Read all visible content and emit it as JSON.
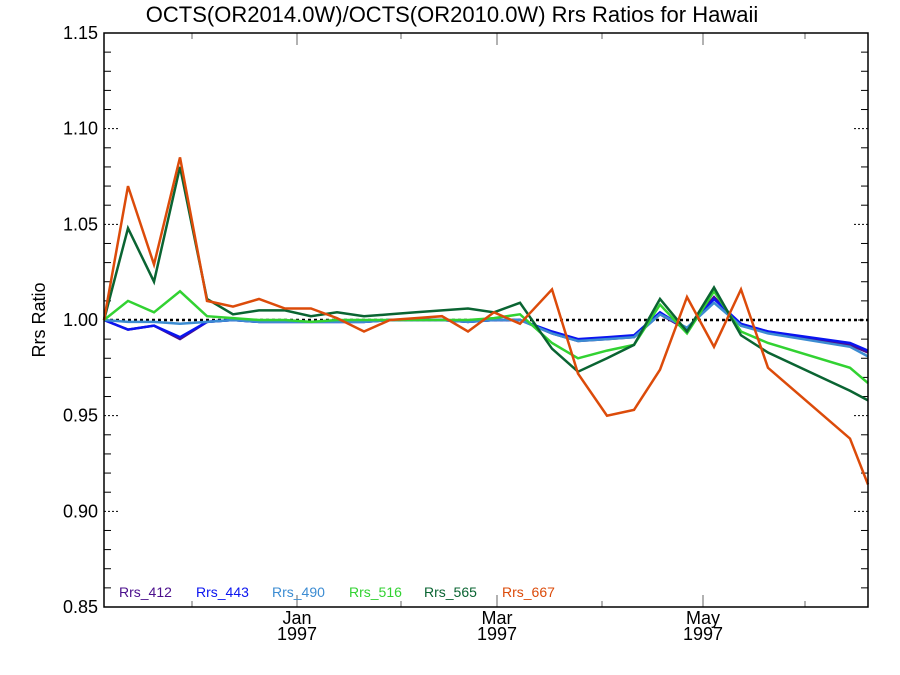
{
  "chart_data": {
    "type": "line",
    "title": "OCTS(OR2014.0W)/OCTS(OR2010.0W)  Rrs Ratios for Hawaii",
    "xlabel": "",
    "ylabel": "Rrs Ratio",
    "x_units": "months since Jan 1997",
    "xlim": [
      -1.93,
      5.71
    ],
    "ylim": [
      0.85,
      1.15
    ],
    "yticks": [
      {
        "value": 0.85,
        "label": "0.85"
      },
      {
        "value": 0.9,
        "label": "0.90"
      },
      {
        "value": 0.95,
        "label": "0.95"
      },
      {
        "value": 1.0,
        "label": "1.00"
      },
      {
        "value": 1.05,
        "label": "1.05"
      },
      {
        "value": 1.1,
        "label": "1.10"
      },
      {
        "value": 1.15,
        "label": "1.15"
      }
    ],
    "xticks": [
      {
        "value": 0,
        "label": "Jan",
        "sublabel": "1997"
      },
      {
        "value": 2,
        "label": "Mar",
        "sublabel": "1997"
      },
      {
        "value": 4.06,
        "label": "May",
        "sublabel": "1997"
      }
    ],
    "x_minor_ticks": [
      -1.05,
      1.04,
      3.05,
      5.08
    ],
    "reference_line": 1.0,
    "legend_placement": "bottom-left",
    "x": [
      -1.93,
      -1.69,
      -1.43,
      -1.17,
      -0.9,
      -0.64,
      -0.38,
      -0.12,
      0.14,
      0.4,
      0.67,
      0.93,
      1.19,
      1.45,
      1.71,
      1.97,
      2.23,
      2.55,
      2.81,
      3.1,
      3.37,
      3.63,
      3.9,
      4.17,
      4.44,
      4.71,
      5.53,
      5.71
    ],
    "series": [
      {
        "name": "Rrs_412",
        "color": "#4b0f8c",
        "values": [
          1.0,
          0.995,
          0.997,
          0.99,
          0.999,
          1.0,
          0.999,
          0.999,
          0.999,
          0.999,
          0.999,
          1.0,
          1.0,
          1.0,
          0.999,
          1.0,
          1.0,
          0.993,
          0.989,
          0.99,
          0.991,
          1.003,
          0.995,
          1.012,
          0.997,
          0.994,
          0.987,
          0.983
        ]
      },
      {
        "name": "Rrs_443",
        "color": "#0a14f0",
        "values": [
          1.0,
          0.995,
          0.997,
          0.991,
          0.999,
          1.0,
          0.999,
          0.999,
          0.999,
          0.999,
          0.999,
          1.0,
          1.0,
          1.0,
          0.999,
          1.0,
          1.0,
          0.994,
          0.99,
          0.991,
          0.992,
          1.004,
          0.995,
          1.011,
          0.998,
          0.994,
          0.988,
          0.984
        ]
      },
      {
        "name": "Rrs_490",
        "color": "#3c8cd2",
        "values": [
          1.0,
          0.999,
          0.999,
          0.998,
          0.999,
          1.0,
          0.999,
          0.999,
          0.999,
          0.999,
          0.999,
          1.0,
          1.0,
          1.0,
          0.999,
          1.0,
          1.0,
          0.993,
          0.989,
          0.99,
          0.991,
          1.003,
          0.996,
          1.009,
          0.997,
          0.993,
          0.986,
          0.981
        ]
      },
      {
        "name": "Rrs_516",
        "color": "#32d232",
        "values": [
          1.0,
          1.01,
          1.004,
          1.015,
          1.002,
          1.001,
          1.0,
          1.0,
          0.999,
          1.0,
          1.0,
          1.0,
          1.0,
          1.0,
          1.0,
          1.001,
          1.003,
          0.988,
          0.98,
          0.984,
          0.987,
          1.008,
          0.993,
          1.015,
          0.994,
          0.988,
          0.975,
          0.967
        ]
      },
      {
        "name": "Rrs_565",
        "color": "#0a6432",
        "values": [
          1.0,
          1.048,
          1.02,
          1.08,
          1.011,
          1.003,
          1.005,
          1.005,
          1.002,
          1.004,
          1.002,
          1.003,
          1.004,
          1.005,
          1.006,
          1.004,
          1.009,
          0.985,
          0.973,
          0.98,
          0.987,
          1.011,
          0.994,
          1.017,
          0.992,
          0.983,
          0.963,
          0.958
        ]
      },
      {
        "name": "Rrs_667",
        "color": "#dc4b0a",
        "values": [
          1.0,
          1.07,
          1.029,
          1.085,
          1.01,
          1.007,
          1.011,
          1.006,
          1.006,
          1.001,
          0.994,
          1.0,
          1.001,
          1.002,
          0.994,
          1.004,
          0.998,
          1.016,
          0.972,
          0.95,
          0.953,
          0.974,
          1.012,
          0.986,
          1.016,
          0.975,
          0.938,
          0.914
        ]
      }
    ]
  }
}
